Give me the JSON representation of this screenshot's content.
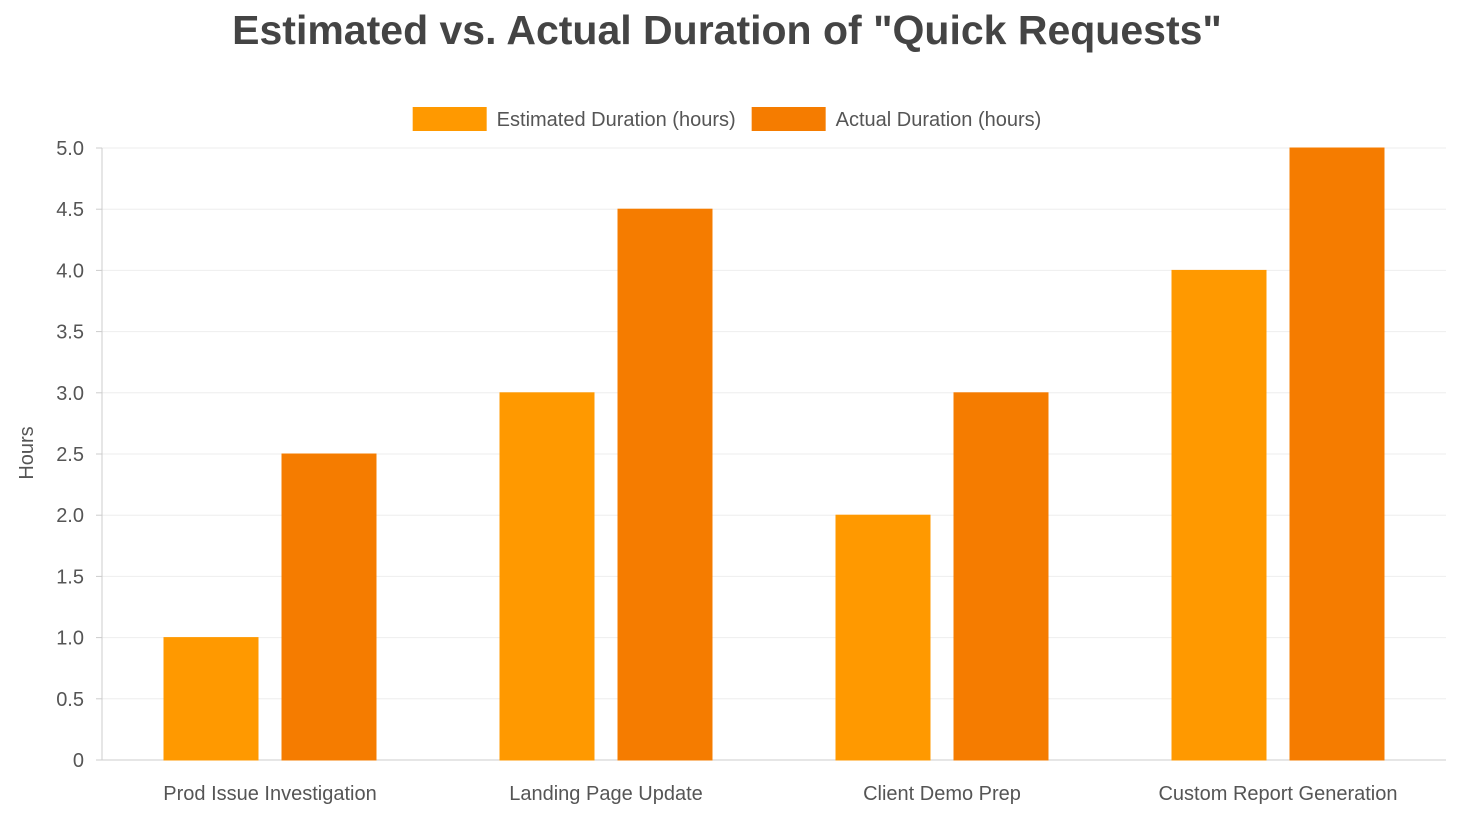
{
  "chart_data": {
    "type": "bar",
    "title": "Estimated vs. Actual Duration of \"Quick Requests\"",
    "xlabel": "",
    "ylabel": "Hours",
    "ylim": [
      0,
      5
    ],
    "y_ticks": [
      "0",
      "0.5",
      "1.0",
      "1.5",
      "2.0",
      "2.5",
      "3.0",
      "3.5",
      "4.0",
      "4.5",
      "5.0"
    ],
    "y_tick_values": [
      0,
      0.5,
      1,
      1.5,
      2,
      2.5,
      3,
      3.5,
      4,
      4.5,
      5
    ],
    "categories": [
      "Prod Issue Investigation",
      "Landing Page Update",
      "Client Demo Prep",
      "Custom Report Generation"
    ],
    "series": [
      {
        "name": "Estimated Duration (hours)",
        "values": [
          1,
          3,
          2,
          4
        ],
        "color": "#ff9900"
      },
      {
        "name": "Actual Duration (hours)",
        "values": [
          2.5,
          4.5,
          3,
          5
        ],
        "color": "#f57c00"
      }
    ],
    "grid": true,
    "legend_position": "top-center"
  }
}
